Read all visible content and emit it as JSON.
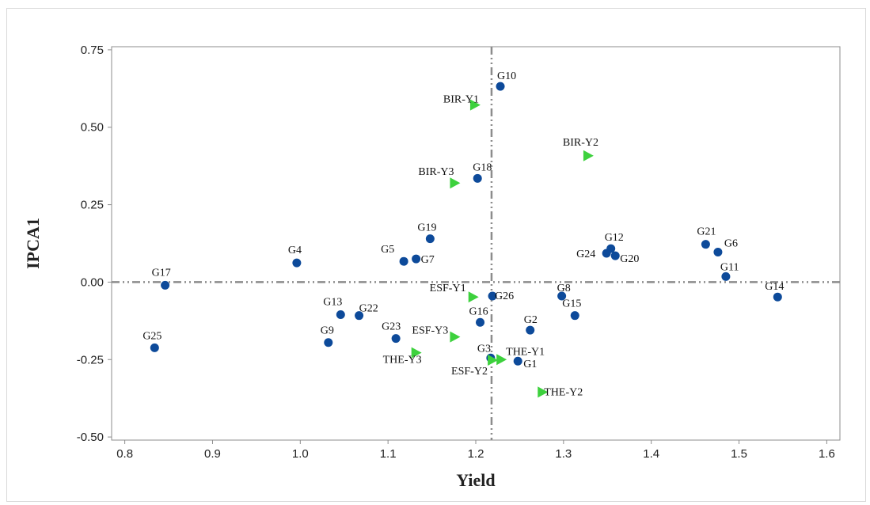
{
  "chart_data": {
    "type": "scatter",
    "xlabel": "Yield",
    "ylabel": "IPCA1",
    "xlim": [
      0.785,
      1.615
    ],
    "ylim": [
      -0.51,
      0.76
    ],
    "xticks": [
      "0.8",
      "0.9",
      "1.0",
      "1.1",
      "1.2",
      "1.3",
      "1.4",
      "1.5",
      "1.6"
    ],
    "yticks": [
      "0.75",
      "0.50",
      "0.25",
      "0.00",
      "-0.25",
      "-0.50"
    ],
    "reference_lines": {
      "x": 1.218,
      "y": 0.0
    },
    "grid": false,
    "series": [
      {
        "marker": "circle",
        "color": "#0d4a9a",
        "points": [
          {
            "label": "G1",
            "x": 1.248,
            "y": -0.255
          },
          {
            "label": "G2",
            "x": 1.262,
            "y": -0.155
          },
          {
            "label": "G3",
            "x": 1.217,
            "y": -0.245
          },
          {
            "label": "G4",
            "x": 0.996,
            "y": 0.062
          },
          {
            "label": "G5",
            "x": 1.118,
            "y": 0.067
          },
          {
            "label": "G6",
            "x": 1.476,
            "y": 0.097
          },
          {
            "label": "G7",
            "x": 1.132,
            "y": 0.075
          },
          {
            "label": "G8",
            "x": 1.298,
            "y": -0.045
          },
          {
            "label": "G9",
            "x": 1.032,
            "y": -0.195
          },
          {
            "label": "G10",
            "x": 1.228,
            "y": 0.632
          },
          {
            "label": "G11",
            "x": 1.485,
            "y": 0.018
          },
          {
            "label": "G12",
            "x": 1.354,
            "y": 0.108
          },
          {
            "label": "G13",
            "x": 1.046,
            "y": -0.105
          },
          {
            "label": "G14",
            "x": 1.544,
            "y": -0.048
          },
          {
            "label": "G15",
            "x": 1.313,
            "y": -0.108
          },
          {
            "label": "G16",
            "x": 1.205,
            "y": -0.13
          },
          {
            "label": "G17",
            "x": 0.846,
            "y": -0.01
          },
          {
            "label": "G18",
            "x": 1.202,
            "y": 0.335
          },
          {
            "label": "G19",
            "x": 1.148,
            "y": 0.14
          },
          {
            "label": "G20",
            "x": 1.359,
            "y": 0.085
          },
          {
            "label": "G21",
            "x": 1.462,
            "y": 0.122
          },
          {
            "label": "G22",
            "x": 1.067,
            "y": -0.108
          },
          {
            "label": "G23",
            "x": 1.109,
            "y": -0.182
          },
          {
            "label": "G24",
            "x": 1.349,
            "y": 0.093
          },
          {
            "label": "G25",
            "x": 0.834,
            "y": -0.212
          },
          {
            "label": "G26",
            "x": 1.219,
            "y": -0.045
          }
        ]
      },
      {
        "marker": "triangle",
        "color": "#3dd13d",
        "points": [
          {
            "label": "BIR-Y1",
            "x": 1.199,
            "y": 0.572
          },
          {
            "label": "BIR-Y2",
            "x": 1.328,
            "y": 0.408
          },
          {
            "label": "BIR-Y3",
            "x": 1.176,
            "y": 0.32
          },
          {
            "label": "ESF-Y1",
            "x": 1.197,
            "y": -0.048
          },
          {
            "label": "ESF-Y2",
            "x": 1.219,
            "y": -0.252
          },
          {
            "label": "ESF-Y3",
            "x": 1.176,
            "y": -0.177
          },
          {
            "label": "THE-Y1",
            "x": 1.229,
            "y": -0.25
          },
          {
            "label": "THE-Y2",
            "x": 1.276,
            "y": -0.355
          },
          {
            "label": "THE-Y3",
            "x": 1.132,
            "y": -0.228
          }
        ]
      }
    ]
  }
}
